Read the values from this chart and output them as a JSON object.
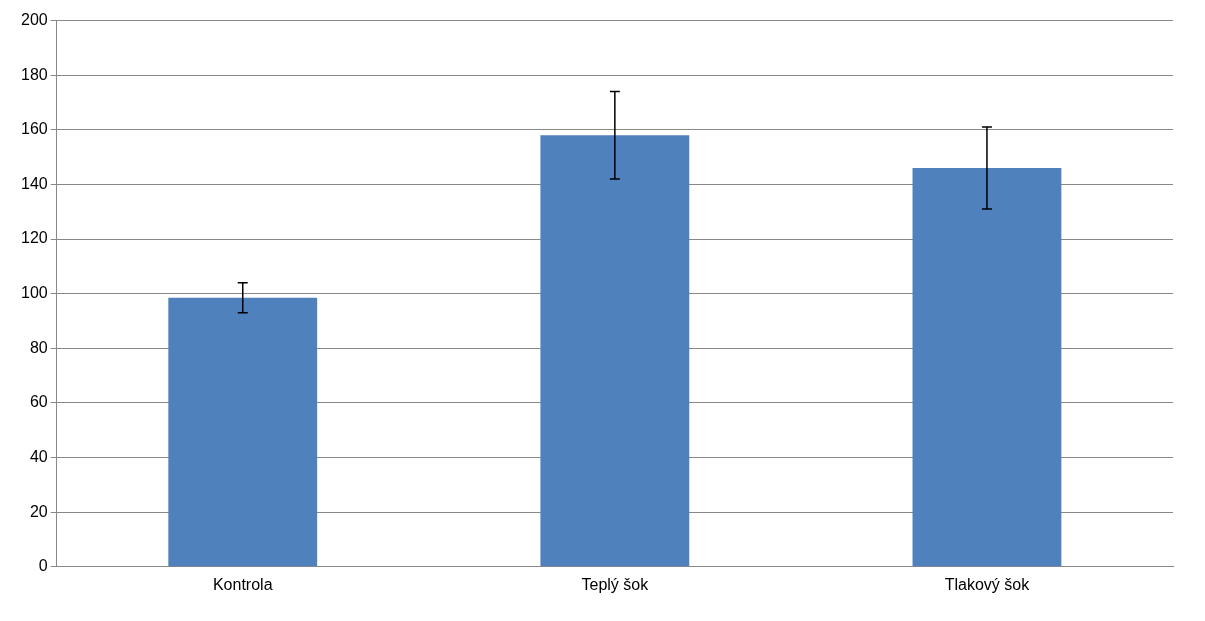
{
  "chart_data": {
    "type": "bar",
    "categories": [
      "Kontrola",
      "Teplý šok",
      "Tlakový šok"
    ],
    "values": [
      98.5,
      158,
      146
    ],
    "errors": [
      5.5,
      16,
      15
    ],
    "color": "#4f81bd",
    "ylim": [
      0,
      200
    ],
    "yticks": [
      0,
      20,
      40,
      60,
      80,
      100,
      120,
      140,
      160,
      180,
      200
    ],
    "grid": "y",
    "legend": false
  }
}
